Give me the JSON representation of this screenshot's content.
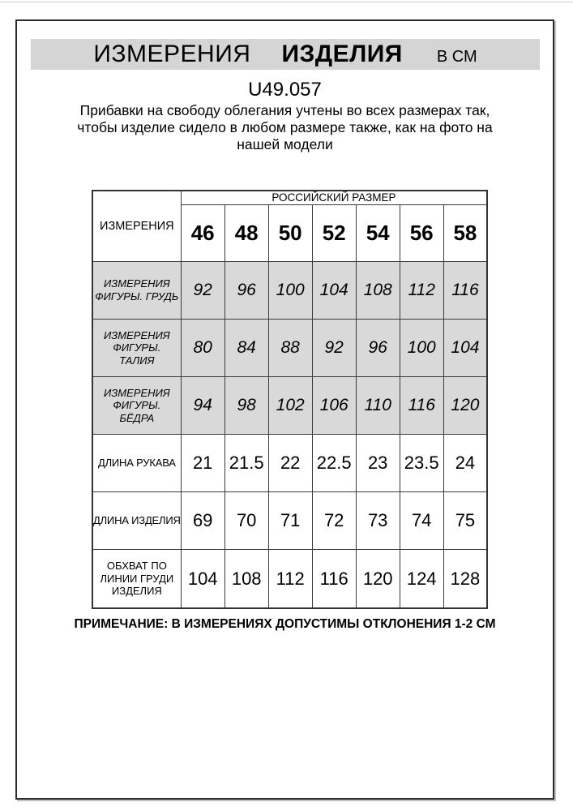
{
  "colors": {
    "title_bar_bg": "#d5d5d5",
    "highlight_row_bg": "#d9d9d9",
    "frame_border": "#2d2d2d",
    "grid_line": "#3a3a3a",
    "text": "#000000"
  },
  "header": {
    "title_regular": "ИЗМЕРЕНИЯ",
    "title_bold": "ИЗДЕЛИЯ",
    "unit": "В СМ"
  },
  "article_code": "U49.057",
  "intro_lines": [
    "Прибавки на свободу облегания учтены во всех размерах так,",
    "чтобы изделие сидело в любом размере также, как на фото на",
    "нашей модели"
  ],
  "size_table": {
    "corner_header": "ИЗМЕРЕНИЯ",
    "group_header": "РОССИЙСКИЙ РАЗМЕР",
    "sizes": [
      "46",
      "48",
      "50",
      "52",
      "54",
      "56",
      "58"
    ],
    "rows": [
      {
        "label": "ИЗМЕРЕНИЯ ФИГУРЫ. ГРУДЬ",
        "style": "figure",
        "values": [
          "92",
          "96",
          "100",
          "104",
          "108",
          "112",
          "116"
        ]
      },
      {
        "label": "ИЗМЕРЕНИЯ ФИГУРЫ. ТАЛИЯ",
        "style": "figure",
        "values": [
          "80",
          "84",
          "88",
          "92",
          "96",
          "100",
          "104"
        ]
      },
      {
        "label": "ИЗМЕРЕНИЯ ФИГУРЫ. БЁДРА",
        "style": "figure",
        "values": [
          "94",
          "98",
          "102",
          "106",
          "110",
          "116",
          "120"
        ]
      },
      {
        "label": "ДЛИНА РУКАВА",
        "style": "product",
        "values": [
          "21",
          "21.5",
          "22",
          "22.5",
          "23",
          "23.5",
          "24"
        ]
      },
      {
        "label": "ДЛИНА ИЗДЕЛИЯ",
        "style": "product",
        "values": [
          "69",
          "70",
          "71",
          "72",
          "73",
          "74",
          "75"
        ]
      },
      {
        "label": "ОБХВАТ ПО ЛИНИИ ГРУДИ ИЗДЕЛИЯ",
        "style": "product",
        "values": [
          "104",
          "108",
          "112",
          "116",
          "120",
          "124",
          "128"
        ]
      }
    ]
  },
  "note": "ПРИМЕЧАНИЕ: В ИЗМЕРЕНИЯХ ДОПУСТИМЫ ОТКЛОНЕНИЯ 1-2 СМ"
}
